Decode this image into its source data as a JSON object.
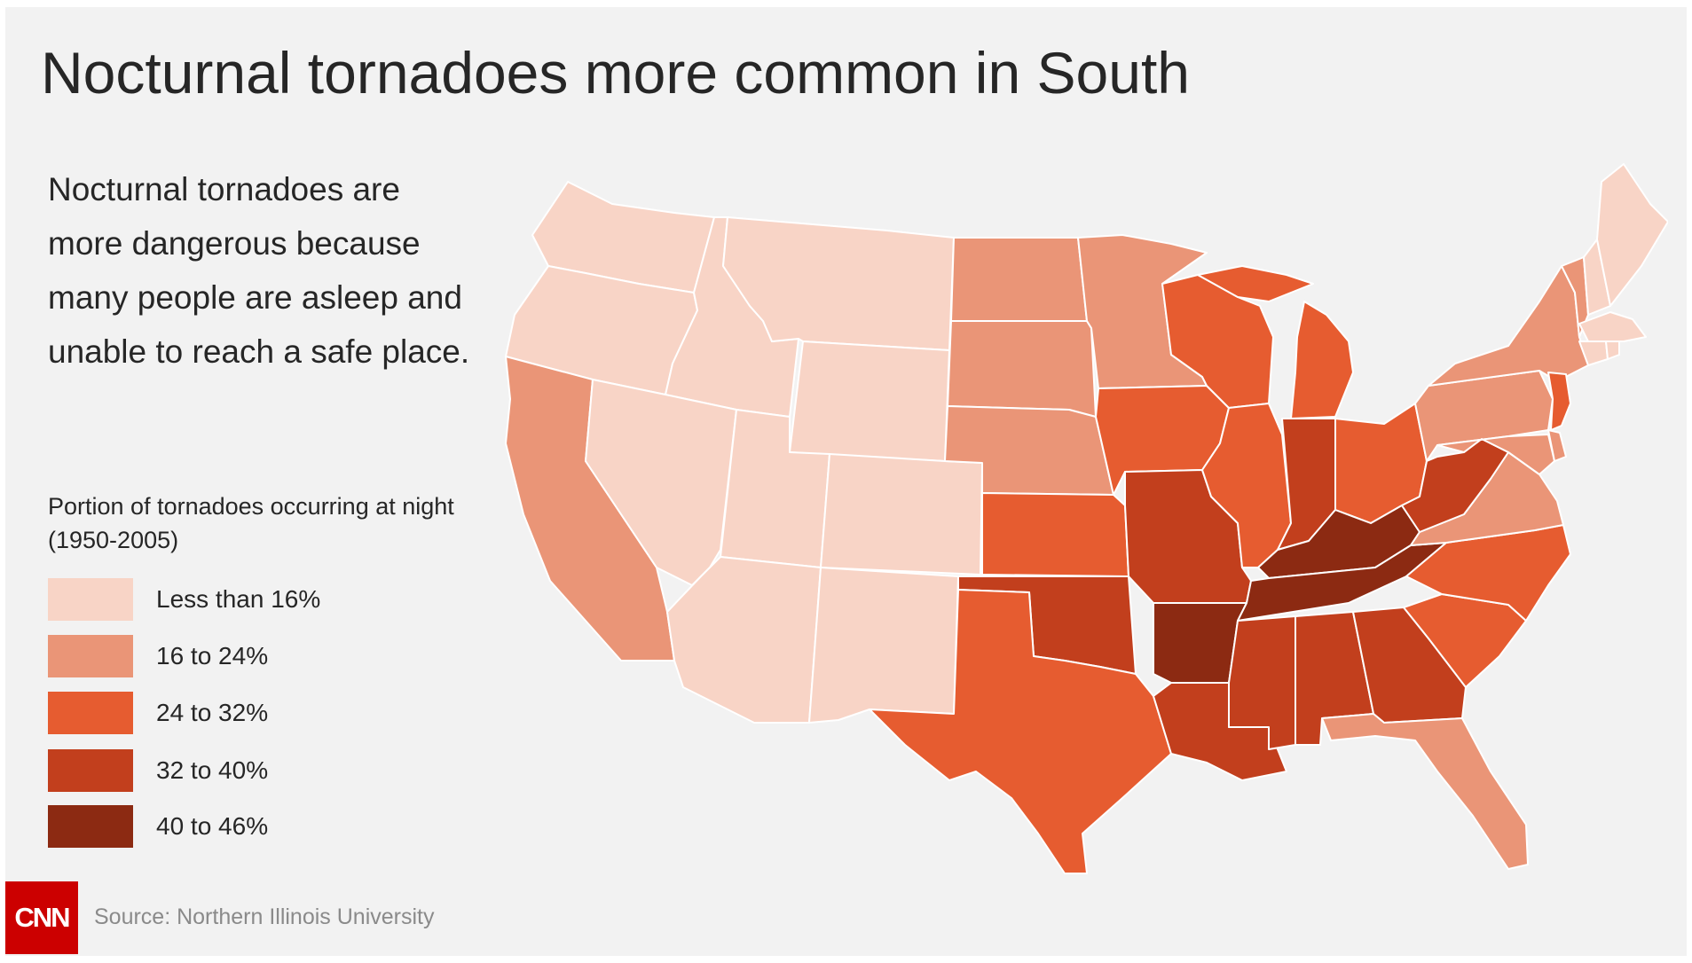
{
  "title": "Nocturnal tornadoes more common in South",
  "description": "Nocturnal tornadoes are more dangerous because many people are asleep and unable to reach a safe place.",
  "legend": {
    "title": "Portion of tornadoes occurring at night (1950-2005)",
    "items": [
      {
        "label": "Less than 16%",
        "color": "#f8d4c6"
      },
      {
        "label": "16 to 24%",
        "color": "#ea9577"
      },
      {
        "label": "24 to 32%",
        "color": "#e65c30"
      },
      {
        "label": "32 to 40%",
        "color": "#c23f1d"
      },
      {
        "label": "40 to 46%",
        "color": "#8c2a12"
      }
    ]
  },
  "logo": "CNN",
  "source": "Source: Northern Illinois University",
  "map_data": {
    "Washington": 0,
    "Oregon": 0,
    "Idaho": 0,
    "Montana": 0,
    "Wyoming": 0,
    "Nevada": 0,
    "Utah": 0,
    "Colorado": 0,
    "Arizona": 0,
    "New Mexico": 0,
    "Maine": 0,
    "New Hampshire": 0,
    "Massachusetts": 0,
    "Connecticut": 0,
    "Rhode Island": 0,
    "California": 1,
    "North Dakota": 1,
    "South Dakota": 1,
    "Nebraska": 1,
    "Minnesota": 1,
    "New York": 1,
    "Vermont": 1,
    "Pennsylvania": 1,
    "Virginia": 1,
    "Maryland": 1,
    "Delaware": 1,
    "Florida": 1,
    "Kansas": 2,
    "Texas": 2,
    "Iowa": 2,
    "Wisconsin": 2,
    "Illinois": 2,
    "Michigan": 2,
    "Ohio": 2,
    "New Jersey": 2,
    "North Carolina": 2,
    "South Carolina": 2,
    "Oklahoma": 3,
    "Missouri": 3,
    "Louisiana": 3,
    "Mississippi": 3,
    "Alabama": 3,
    "Georgia": 3,
    "Indiana": 3,
    "West Virginia": 3,
    "Arkansas": 4,
    "Tennessee": 4,
    "Kentucky": 4
  }
}
